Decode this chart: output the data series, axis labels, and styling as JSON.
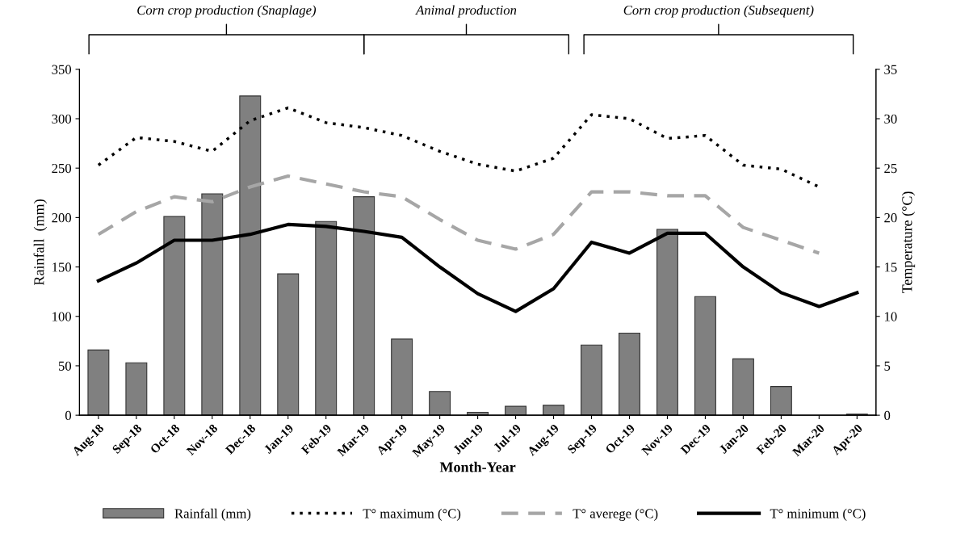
{
  "chart_data": {
    "type": "bar",
    "xlabel": "Month-Year",
    "ylabel": "Rainfall  (mm)",
    "y2label": "Temperature (°C)",
    "categories": [
      "Aug-18",
      "Sep-18",
      "Oct-18",
      "Nov-18",
      "Dec-18",
      "Jan-19",
      "Feb-19",
      "Mar-19",
      "Apr-19",
      "May-19",
      "Jun-19",
      "Jul-19",
      "Aug-19",
      "Sep-19",
      "Oct-19",
      "Nov-19",
      "Dec-19",
      "Jan-20",
      "Feb-20",
      "Mar-20",
      "Apr-20"
    ],
    "series": [
      {
        "name": "Rainfall (mm)",
        "color": "#808080",
        "values": [
          66,
          53,
          201,
          224,
          323,
          143,
          196,
          221,
          77,
          24,
          3,
          9,
          10,
          71,
          83,
          188,
          120,
          57,
          29,
          0,
          1
        ]
      },
      {
        "name": "T° maximum (°C)",
        "type": "line",
        "axis": "y2",
        "color": "#000000",
        "line_style": "dotted",
        "values": [
          25.3,
          28.1,
          27.7,
          26.7,
          29.8,
          31.1,
          29.6,
          29.1,
          28.3,
          26.7,
          25.4,
          24.7,
          26.0,
          30.4,
          30.0,
          28.0,
          28.3,
          25.3,
          24.9,
          23.1,
          null
        ]
      },
      {
        "name": "T° averege (°C)",
        "type": "line",
        "axis": "y2",
        "color": "#a6a6a6",
        "line_style": "dashed",
        "values": [
          18.3,
          20.6,
          22.1,
          21.6,
          23.1,
          24.2,
          23.4,
          22.6,
          22.1,
          19.8,
          17.7,
          16.8,
          18.3,
          22.6,
          22.6,
          22.2,
          22.2,
          19.0,
          17.7,
          16.4,
          null
        ]
      },
      {
        "name": "T° minimum (°C)",
        "type": "line",
        "axis": "y2",
        "color": "#000000",
        "line_style": "solid",
        "values": [
          13.6,
          15.4,
          17.7,
          17.7,
          18.3,
          19.3,
          19.1,
          18.6,
          18.0,
          15.0,
          12.3,
          10.5,
          12.8,
          17.5,
          16.4,
          18.4,
          18.4,
          15.0,
          12.4,
          11.0,
          12.4
        ]
      }
    ],
    "ylim": [
      0,
      350
    ],
    "yticks": [
      0,
      50,
      100,
      150,
      200,
      250,
      300,
      350
    ],
    "y2lim": [
      0,
      35
    ],
    "y2ticks": [
      0,
      5,
      10,
      15,
      20,
      25,
      30,
      35
    ],
    "annotations": [
      "Corn crop production (Snaplage)",
      "Animal production",
      "Corn crop production (Subsequent)"
    ],
    "legend": "bottom",
    "grid": false
  }
}
